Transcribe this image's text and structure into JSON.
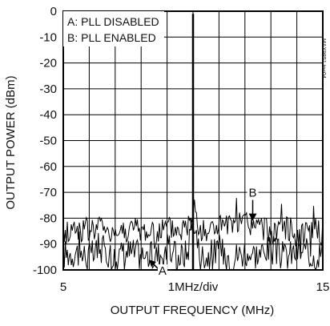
{
  "chart_data": {
    "type": "line",
    "title": "",
    "xlabel": "OUTPUT FREQUENCY (MHz)",
    "ylabel": "OUTPUT POWER (dBm)",
    "xlim": [
      5,
      15
    ],
    "ylim": [
      -100,
      0
    ],
    "x_tick_labels": [
      "5",
      "1MHz/div",
      "15"
    ],
    "y_ticks": [
      0,
      -10,
      -20,
      -30,
      -40,
      -50,
      -60,
      -70,
      -80,
      -90,
      -100
    ],
    "y_tick_labels": [
      "0",
      "-10",
      "-20",
      "-30",
      "-40",
      "-50",
      "-60",
      "-70",
      "-80",
      "-90",
      "-100"
    ],
    "grid": true,
    "legend": {
      "placement": "top-left",
      "entries": [
        "A: PLL DISABLED",
        "B: PLL ENABLED"
      ]
    },
    "side_note": "MAX9851 toc04",
    "carrier": {
      "x": 10,
      "y": -1
    },
    "series": [
      {
        "name": "A",
        "x": [
          5.0,
          5.5,
          6.0,
          6.5,
          7.0,
          7.5,
          8.0,
          8.5,
          9.0,
          9.5,
          9.8,
          9.95,
          10.0,
          10.05,
          10.2,
          10.5,
          11.0,
          11.5,
          12.0,
          12.5,
          13.0,
          13.5,
          14.0,
          14.5,
          15.0
        ],
        "y": [
          -94,
          -93,
          -95,
          -92,
          -95,
          -93,
          -94,
          -95,
          -92,
          -95,
          -93,
          -80,
          -1,
          -80,
          -93,
          -95,
          -92,
          -95,
          -93,
          -94,
          -92,
          -95,
          -93,
          -94,
          -93
        ]
      },
      {
        "name": "B",
        "x": [
          5.0,
          5.5,
          6.0,
          6.5,
          7.0,
          7.5,
          8.0,
          8.5,
          9.0,
          9.5,
          9.8,
          9.95,
          10.0,
          10.05,
          10.2,
          10.5,
          11.0,
          11.5,
          12.0,
          12.5,
          13.0,
          13.5,
          14.0,
          14.5,
          15.0
        ],
        "y": [
          -86,
          -84,
          -85,
          -83,
          -86,
          -84,
          -85,
          -86,
          -84,
          -85,
          -83,
          -76,
          -1,
          -76,
          -84,
          -85,
          -83,
          -84,
          -82,
          -84,
          -85,
          -83,
          -86,
          -84,
          -86
        ]
      }
    ],
    "annotations": [
      {
        "label": "A",
        "series": "A",
        "x_data": 8.3,
        "y_data": -96
      },
      {
        "label": "B",
        "series": "B",
        "x_data": 12.3,
        "y_data": -81
      }
    ]
  }
}
